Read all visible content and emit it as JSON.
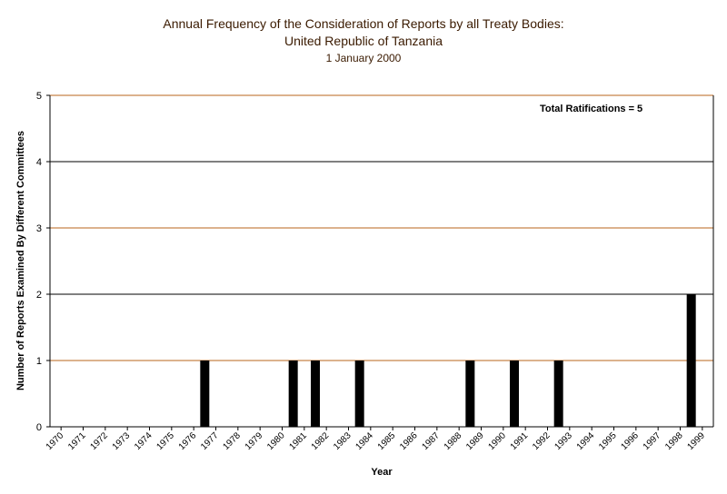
{
  "chart_data": {
    "type": "bar",
    "title": "Annual Frequency of the Consideration of Reports by all Treaty Bodies:",
    "title_line2": "United Republic of Tanzania",
    "subtitle": "1 January 2000",
    "xlabel": "Year",
    "ylabel": "Number of Reports Examined By Different Committees",
    "annotation": "Total Ratifications = 5",
    "ylim": [
      0,
      5
    ],
    "yticks": [
      "0",
      "1",
      "2",
      "3",
      "4",
      "5"
    ],
    "categories": [
      "1970",
      "1971",
      "1972",
      "1973",
      "1974",
      "1975",
      "1976",
      "1977",
      "1978",
      "1979",
      "1980",
      "1981",
      "1982",
      "1983",
      "1984",
      "1985",
      "1986",
      "1987",
      "1988",
      "1989",
      "1990",
      "1991",
      "1992",
      "1993",
      "1994",
      "1995",
      "1996",
      "1997",
      "1998",
      "1999"
    ],
    "values": [
      0,
      0,
      0,
      0,
      0,
      0,
      1,
      0,
      0,
      0,
      1,
      1,
      0,
      1,
      0,
      0,
      0,
      0,
      1,
      0,
      1,
      0,
      1,
      0,
      0,
      0,
      0,
      0,
      2,
      0
    ],
    "grid": true,
    "colors": {
      "bar": "#000000",
      "gridline_even": "#000000",
      "gridline_odd": "#b8651b",
      "axis": "#000000",
      "title": "#3a1a00"
    }
  }
}
